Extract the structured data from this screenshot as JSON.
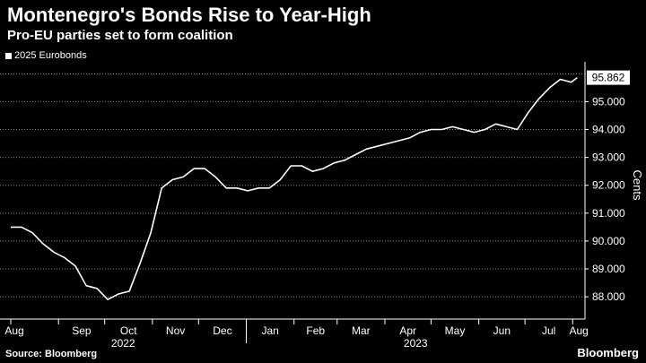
{
  "title": "Montenegro's Bonds Rise to Year-High",
  "subtitle": "Pro-EU parties set to form coalition",
  "legend_label": "2025 Eurobonds",
  "source": "Source: Bloomberg",
  "brand": "Bloomberg",
  "last_value_label": "95.862",
  "colors": {
    "background": "#000000",
    "line": "#ffffff",
    "grid": "#8a8a8a"
  },
  "chart_data": {
    "type": "line",
    "series": [
      {
        "name": "2025 Eurobonds",
        "x": [
          "2022-08-01",
          "2022-08-08",
          "2022-08-15",
          "2022-08-22",
          "2022-08-29",
          "2022-09-05",
          "2022-09-12",
          "2022-09-19",
          "2022-09-26",
          "2022-10-03",
          "2022-10-10",
          "2022-10-17",
          "2022-10-24",
          "2022-10-31",
          "2022-11-07",
          "2022-11-14",
          "2022-11-21",
          "2022-11-28",
          "2022-12-05",
          "2022-12-12",
          "2022-12-19",
          "2022-12-26",
          "2023-01-02",
          "2023-01-09",
          "2023-01-16",
          "2023-01-23",
          "2023-01-30",
          "2023-02-06",
          "2023-02-13",
          "2023-02-20",
          "2023-02-27",
          "2023-03-06",
          "2023-03-13",
          "2023-03-20",
          "2023-03-27",
          "2023-04-03",
          "2023-04-10",
          "2023-04-17",
          "2023-04-24",
          "2023-05-01",
          "2023-05-08",
          "2023-05-15",
          "2023-05-22",
          "2023-05-29",
          "2023-06-05",
          "2023-06-12",
          "2023-06-19",
          "2023-06-26",
          "2023-07-03",
          "2023-07-10",
          "2023-07-17",
          "2023-07-24",
          "2023-07-31",
          "2023-08-04"
        ],
        "y": [
          90.5,
          90.5,
          90.3,
          89.9,
          89.6,
          89.4,
          89.1,
          88.4,
          88.3,
          87.9,
          88.1,
          88.2,
          89.2,
          90.3,
          91.9,
          92.2,
          92.3,
          92.6,
          92.6,
          92.3,
          91.9,
          91.9,
          91.8,
          91.9,
          91.9,
          92.2,
          92.7,
          92.7,
          92.5,
          92.6,
          92.8,
          92.9,
          93.1,
          93.3,
          93.4,
          93.5,
          93.6,
          93.7,
          93.9,
          94.0,
          94.0,
          94.1,
          94.0,
          93.9,
          94.0,
          94.2,
          94.1,
          94.0,
          94.6,
          95.1,
          95.5,
          95.8,
          95.7,
          95.862
        ]
      }
    ],
    "x_ticks": [
      "Aug",
      "Sep",
      "Oct",
      "Nov",
      "Dec",
      "Jan",
      "Feb",
      "Mar",
      "Apr",
      "May",
      "Jun",
      "Jul",
      "Aug"
    ],
    "year_labels": [
      "2022",
      "2023"
    ],
    "y_ticks": [
      "88.000",
      "89.000",
      "90.000",
      "91.000",
      "92.000",
      "93.000",
      "94.000",
      "95.000"
    ],
    "ylabel": "Cents",
    "ylim": [
      87.2,
      96.3
    ],
    "y_axis_side": "right",
    "grid": true,
    "legend_position": "top-left"
  }
}
